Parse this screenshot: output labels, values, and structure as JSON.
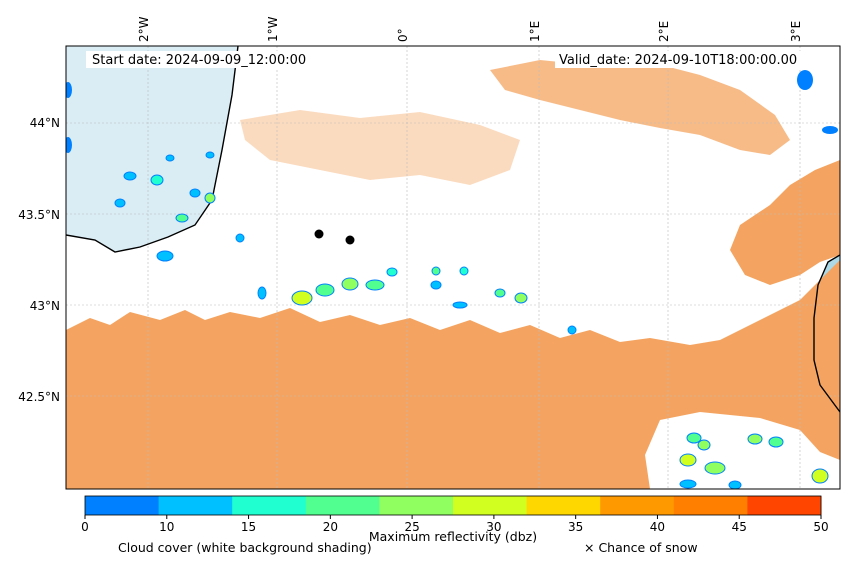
{
  "map": {
    "start_date": "Start date: 2024-09-09_12:00:00",
    "valid_date": "Valid_date: 2024-09-10T18:00:00.00",
    "longitude_labels": [
      "2°W",
      "1°W",
      "0°",
      "1°E",
      "2°E",
      "3°E"
    ],
    "latitude_labels": [
      "44°N",
      "43.5°N",
      "43°N",
      "42.5°N"
    ],
    "colors": {
      "cloud_cover": "#f4a460",
      "sea": "#add8e6",
      "coast": "#000000",
      "grid": "#bbbbbb",
      "marker": "#000000"
    }
  },
  "colorbar": {
    "ticks": [
      "0",
      "10",
      "15",
      "20",
      "25",
      "30",
      "35",
      "40",
      "45",
      "50"
    ],
    "colors": [
      "#0080ff",
      "#00c0ff",
      "#20ffd0",
      "#50ff90",
      "#90ff60",
      "#d0ff20",
      "#ffd700",
      "#ff9900",
      "#ff8000",
      "#ff4500"
    ],
    "title": "Maximum reflectivity (dbz)",
    "cloud_label": "Cloud cover (white background shading)",
    "snow_label": "× Chance of snow"
  }
}
